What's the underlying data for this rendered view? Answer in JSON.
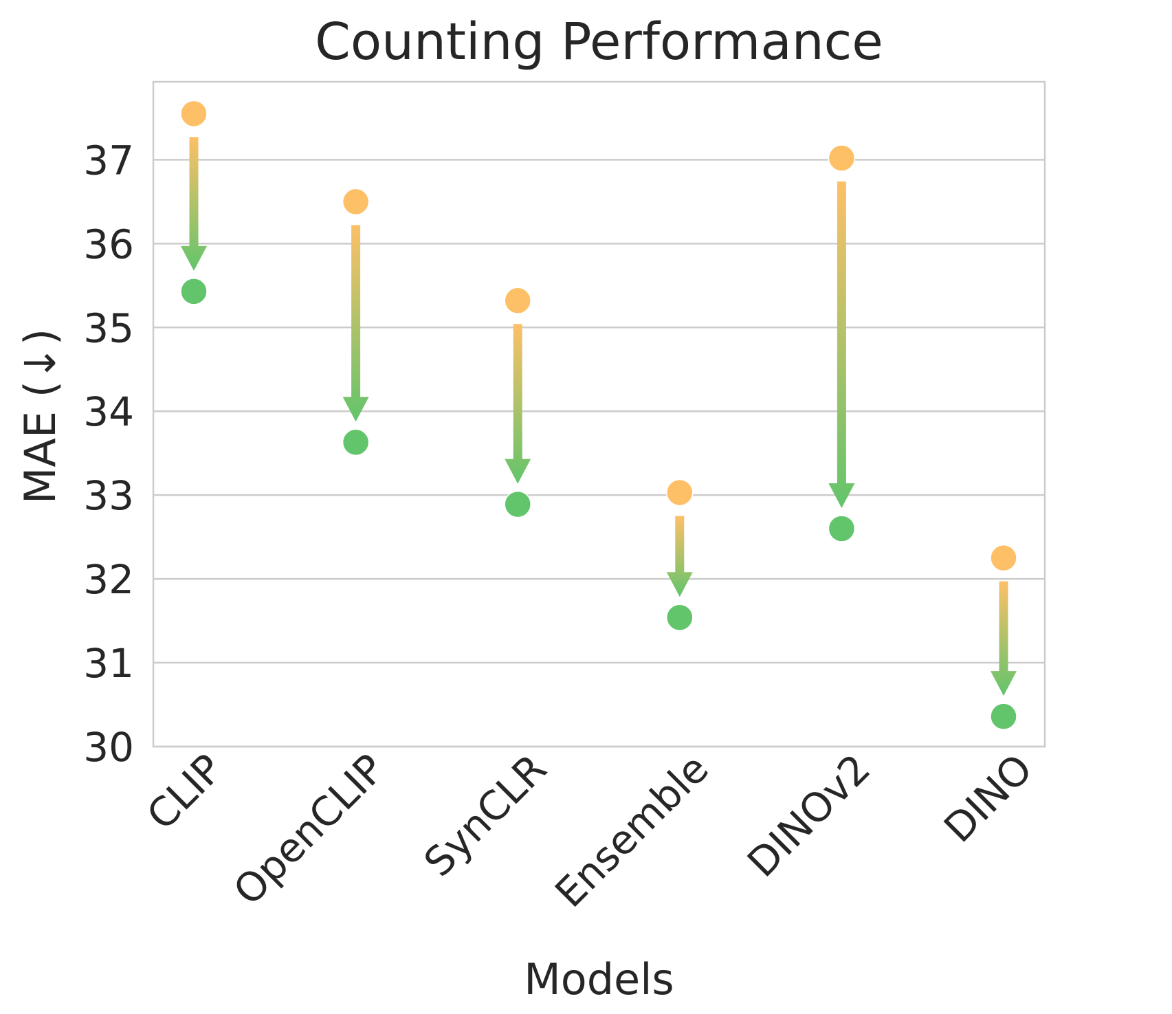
{
  "chart_data": {
    "type": "scatter",
    "title": "Counting Performance",
    "xlabel": "Models",
    "ylabel": "MAE (↓)",
    "categories": [
      "CLIP",
      "OpenCLIP",
      "SynCLR",
      "Ensemble",
      "DINOv2",
      "DINO"
    ],
    "series": [
      {
        "values": [
          37.55,
          36.5,
          35.32,
          33.03,
          37.02,
          32.25
        ]
      },
      {
        "values": [
          35.43,
          33.63,
          32.89,
          31.54,
          32.6,
          30.36
        ]
      }
    ],
    "yticks": [
      30,
      31,
      32,
      33,
      34,
      35,
      36,
      37
    ],
    "ylim": [
      30,
      37.93
    ],
    "grid": "horizontal",
    "annotations": "downward arrows from first to second value per model, orange-to-green gradient",
    "colors": {
      "start": "#fdc067",
      "end": "#62c46b",
      "grid": "#cccccc",
      "text": "#262626"
    }
  }
}
